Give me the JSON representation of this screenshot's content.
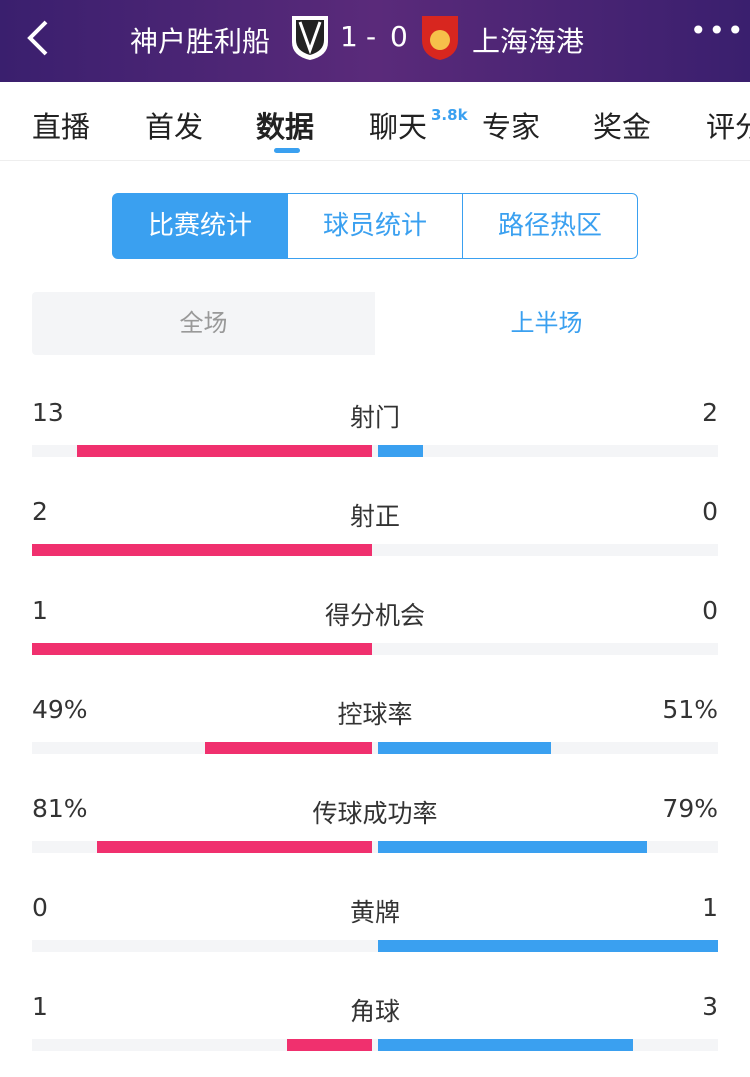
{
  "header": {
    "home_team": "神户胜利船",
    "home_score": 1,
    "away_score": 0,
    "away_team": "上海海港"
  },
  "tabs": [
    {
      "label": "直播"
    },
    {
      "label": "首发"
    },
    {
      "label": "数据",
      "active": true
    },
    {
      "label": "聊天",
      "badge": "3.8k"
    },
    {
      "label": "专家"
    },
    {
      "label": "奖金"
    },
    {
      "label": "评分"
    }
  ],
  "segments": [
    {
      "label": "比赛统计",
      "active": true
    },
    {
      "label": "球员统计"
    },
    {
      "label": "路径热区"
    }
  ],
  "periods": [
    {
      "label": "全场"
    },
    {
      "label": "上半场",
      "active": true
    }
  ],
  "stats": [
    {
      "name": "射门",
      "home": 13,
      "away": 2,
      "bar_scale": "share"
    },
    {
      "name": "射正",
      "home": 2,
      "away": 0,
      "bar_scale": "share"
    },
    {
      "name": "得分机会",
      "home": 1,
      "away": 0,
      "bar_scale": "share"
    },
    {
      "name": "控球率",
      "home": {
        "value": 49,
        "label": "49%"
      },
      "away": {
        "value": 51,
        "label": "51%"
      },
      "bar_scale": "percent"
    },
    {
      "name": "传球成功率",
      "home": {
        "value": 81,
        "label": "81%"
      },
      "away": {
        "value": 79,
        "label": "79%"
      },
      "bar_scale": "percent"
    },
    {
      "name": "黄牌",
      "home": 0,
      "away": 1,
      "bar_scale": "share"
    },
    {
      "name": "角球",
      "home": 1,
      "away": 3,
      "bar_scale": "share"
    }
  ],
  "colors": {
    "home": "#f0306e",
    "away": "#3aa0f0"
  }
}
